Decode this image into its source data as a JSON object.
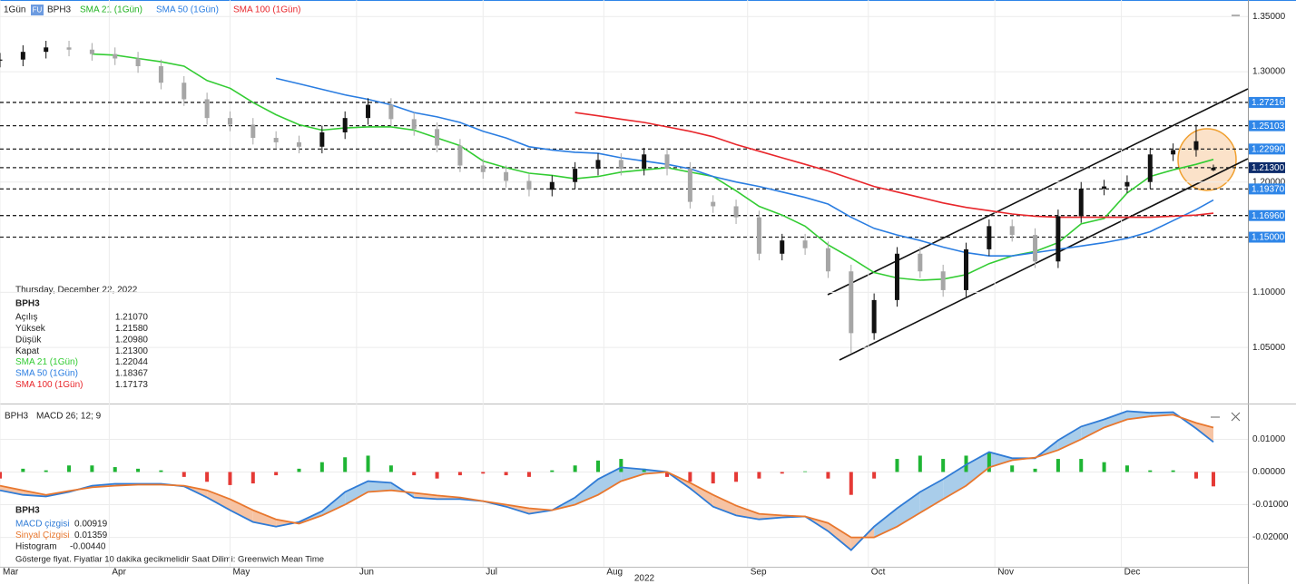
{
  "chart_data": [
    {
      "type": "candlestick",
      "interval": "1Gün",
      "badge": "FU",
      "symbol": "BPH3",
      "x": [
        0,
        4,
        8,
        12,
        16,
        20,
        24,
        28,
        32,
        36,
        40,
        44,
        48,
        52,
        56,
        60,
        64,
        68,
        72,
        76,
        80,
        84,
        88,
        92,
        96,
        100,
        104,
        108,
        112,
        116,
        120,
        124,
        128,
        132,
        136,
        140,
        144,
        148,
        152,
        156,
        160,
        164,
        168,
        172,
        176,
        180,
        184,
        188,
        192,
        196,
        200,
        204,
        208,
        211
      ],
      "open": [
        1.31,
        1.311,
        1.318,
        1.322,
        1.32,
        1.316,
        1.312,
        1.305,
        1.29,
        1.275,
        1.258,
        1.252,
        1.24,
        1.236,
        1.232,
        1.245,
        1.258,
        1.27,
        1.257,
        1.248,
        1.233,
        1.215,
        1.209,
        1.201,
        1.193,
        1.2,
        1.212,
        1.22,
        1.212,
        1.225,
        1.212,
        1.182,
        1.178,
        1.168,
        1.135,
        1.147,
        1.14,
        1.119,
        1.063,
        1.093,
        1.135,
        1.119,
        1.102,
        1.139,
        1.16,
        1.152,
        1.128,
        1.169,
        1.194,
        1.196,
        1.2,
        1.225,
        1.229,
        1.2107
      ],
      "high": [
        1.317,
        1.324,
        1.328,
        1.328,
        1.326,
        1.322,
        1.318,
        1.311,
        1.296,
        1.281,
        1.264,
        1.258,
        1.246,
        1.242,
        1.251,
        1.264,
        1.276,
        1.276,
        1.263,
        1.254,
        1.239,
        1.221,
        1.215,
        1.207,
        1.206,
        1.218,
        1.226,
        1.226,
        1.231,
        1.231,
        1.218,
        1.188,
        1.184,
        1.174,
        1.153,
        1.153,
        1.146,
        1.125,
        1.099,
        1.141,
        1.141,
        1.125,
        1.145,
        1.166,
        1.166,
        1.158,
        1.175,
        1.2,
        1.202,
        1.206,
        1.231,
        1.235,
        1.252,
        1.2158
      ],
      "low": [
        1.304,
        1.305,
        1.312,
        1.314,
        1.31,
        1.306,
        1.299,
        1.284,
        1.269,
        1.252,
        1.246,
        1.234,
        1.23,
        1.226,
        1.226,
        1.239,
        1.252,
        1.251,
        1.242,
        1.227,
        1.209,
        1.203,
        1.195,
        1.187,
        1.187,
        1.194,
        1.206,
        1.206,
        1.206,
        1.206,
        1.176,
        1.172,
        1.162,
        1.129,
        1.129,
        1.134,
        1.113,
        1.045,
        1.057,
        1.087,
        1.113,
        1.096,
        1.096,
        1.133,
        1.146,
        1.122,
        1.122,
        1.163,
        1.188,
        1.19,
        1.194,
        1.219,
        1.223,
        1.2098
      ],
      "close": [
        1.311,
        1.318,
        1.322,
        1.32,
        1.316,
        1.312,
        1.305,
        1.29,
        1.275,
        1.258,
        1.252,
        1.24,
        1.236,
        1.232,
        1.245,
        1.258,
        1.27,
        1.257,
        1.248,
        1.233,
        1.215,
        1.209,
        1.201,
        1.193,
        1.2,
        1.212,
        1.22,
        1.212,
        1.225,
        1.212,
        1.182,
        1.178,
        1.168,
        1.135,
        1.147,
        1.14,
        1.119,
        1.063,
        1.093,
        1.135,
        1.119,
        1.102,
        1.139,
        1.16,
        1.152,
        1.128,
        1.169,
        1.194,
        1.196,
        1.2,
        1.225,
        1.229,
        1.237,
        1.213
      ],
      "up_color": "#111111",
      "down_color": "#a6a6a6",
      "series": [
        {
          "name": "SMA 21 (1Gün)",
          "color": "#33cc33",
          "last": "1.22044",
          "values": [
            null,
            null,
            null,
            null,
            1.316,
            1.315,
            1.312,
            1.309,
            1.305,
            1.292,
            1.285,
            1.272,
            1.261,
            1.252,
            1.247,
            1.249,
            1.25,
            1.25,
            1.247,
            1.24,
            1.233,
            1.219,
            1.213,
            1.208,
            1.206,
            1.203,
            1.205,
            1.209,
            1.211,
            1.213,
            1.209,
            1.205,
            1.192,
            1.178,
            1.17,
            1.16,
            1.143,
            1.131,
            1.118,
            1.113,
            1.111,
            1.112,
            1.116,
            1.126,
            1.133,
            1.137,
            1.145,
            1.162,
            1.167,
            1.19,
            1.205,
            1.211,
            1.216,
            1.22044
          ]
        },
        {
          "name": "SMA 50 (1Gün)",
          "color": "#2a7de1",
          "last": "1.18367",
          "values": [
            null,
            null,
            null,
            null,
            null,
            null,
            null,
            null,
            null,
            null,
            null,
            null,
            1.294,
            1.289,
            1.284,
            1.279,
            1.275,
            1.27,
            1.263,
            1.259,
            1.254,
            1.246,
            1.24,
            1.232,
            1.229,
            1.227,
            1.226,
            1.222,
            1.219,
            1.216,
            1.212,
            1.205,
            1.2,
            1.196,
            1.191,
            1.186,
            1.18,
            1.168,
            1.158,
            1.152,
            1.147,
            1.141,
            1.136,
            1.133,
            1.133,
            1.136,
            1.139,
            1.142,
            1.145,
            1.149,
            1.155,
            1.165,
            1.175,
            1.18367
          ]
        },
        {
          "name": "SMA 100 (1Gün)",
          "color": "#e8262b",
          "last": "1.17173",
          "values": [
            null,
            null,
            null,
            null,
            null,
            null,
            null,
            null,
            null,
            null,
            null,
            null,
            null,
            null,
            null,
            null,
            null,
            null,
            null,
            null,
            null,
            null,
            null,
            null,
            null,
            1.263,
            1.26,
            1.257,
            1.254,
            1.25,
            1.246,
            1.241,
            1.234,
            1.228,
            1.222,
            1.216,
            1.21,
            1.203,
            1.196,
            1.191,
            1.186,
            1.181,
            1.177,
            1.174,
            1.171,
            1.169,
            1.168,
            1.168,
            1.168,
            1.168,
            1.168,
            1.169,
            1.17,
            1.17173
          ]
        }
      ],
      "ylim": [
        1.0,
        1.365
      ],
      "yticks": [
        {
          "value": 1.35,
          "label": "1.35000"
        },
        {
          "value": 1.3,
          "label": "1.30000"
        },
        {
          "value": 1.2,
          "label": "1.20000"
        },
        {
          "value": 1.1,
          "label": "1.10000"
        },
        {
          "value": 1.05,
          "label": "1.05000"
        }
      ],
      "levels": [
        {
          "value": 1.27216,
          "label": "1.27216",
          "color": "#2f86e8"
        },
        {
          "value": 1.25103,
          "label": "1.25103",
          "color": "#2f86e8"
        },
        {
          "value": 1.2299,
          "label": "1.22990",
          "color": "#2f86e8"
        },
        {
          "value": 1.213,
          "label": "1.21300",
          "color": "#0d2c6b"
        },
        {
          "value": 1.1937,
          "label": "1.19370",
          "color": "#2f86e8"
        },
        {
          "value": 1.1696,
          "label": "1.16960",
          "color": "#2f86e8"
        },
        {
          "value": 1.15,
          "label": "1.15000",
          "color": "#2f86e8"
        }
      ],
      "xlim": [
        0,
        217
      ],
      "xticks": [
        {
          "value": 0,
          "label": "Mar"
        },
        {
          "value": 19,
          "label": "Apr"
        },
        {
          "value": 40,
          "label": "May"
        },
        {
          "value": 62,
          "label": "Jun"
        },
        {
          "value": 84,
          "label": "Jul"
        },
        {
          "value": 105,
          "label": "Aug"
        },
        {
          "value": 130,
          "label": "Sep"
        },
        {
          "value": 151,
          "label": "Oct"
        },
        {
          "value": 173,
          "label": "Nov"
        },
        {
          "value": 195,
          "label": "Dec"
        }
      ],
      "xlabel": "2022",
      "info": {
        "date": "Thursday, December 22, 2022",
        "symbol": "BPH3",
        "rows": [
          {
            "label": "Açılış",
            "value": "1.21070"
          },
          {
            "label": "Yüksek",
            "value": "1.21580"
          },
          {
            "label": "Düşük",
            "value": "1.20980"
          },
          {
            "label": "Kapat",
            "value": "1.21300"
          }
        ]
      }
    },
    {
      "type": "macd",
      "symbol": "BPH3",
      "title": "MACD 26; 12; 9",
      "x": [
        0,
        4,
        8,
        12,
        16,
        20,
        24,
        28,
        32,
        36,
        40,
        44,
        48,
        52,
        56,
        60,
        64,
        68,
        72,
        76,
        80,
        84,
        88,
        92,
        96,
        100,
        104,
        108,
        112,
        116,
        120,
        124,
        128,
        132,
        136,
        140,
        144,
        148,
        152,
        156,
        160,
        164,
        168,
        172,
        176,
        180,
        184,
        188,
        192,
        196,
        200,
        204,
        208,
        211
      ],
      "series": [
        {
          "name": "MACD çizgisi",
          "color": "#2f7bd6",
          "last": "0.00919",
          "values": [
            -0.0056,
            -0.007,
            -0.0075,
            -0.0061,
            -0.0042,
            -0.0036,
            -0.0036,
            -0.0036,
            -0.0044,
            -0.0078,
            -0.0117,
            -0.0153,
            -0.0167,
            -0.0153,
            -0.012,
            -0.0061,
            -0.0028,
            -0.0033,
            -0.0078,
            -0.0083,
            -0.0083,
            -0.0089,
            -0.0106,
            -0.0128,
            -0.0117,
            -0.0078,
            -0.0022,
            0.0014,
            0.0008,
            0.0,
            -0.005,
            -0.0106,
            -0.0133,
            -0.0145,
            -0.0139,
            -0.0136,
            -0.0181,
            -0.0239,
            -0.0167,
            -0.0111,
            -0.0061,
            -0.0022,
            0.0022,
            0.0061,
            0.0042,
            0.0042,
            0.0097,
            0.0139,
            0.0161,
            0.0186,
            0.0181,
            0.0183,
            0.0133,
            0.00919
          ]
        },
        {
          "name": "Sinyal Çizgisi",
          "color": "#e8772e",
          "last": "0.01359",
          "values": [
            -0.0042,
            -0.0056,
            -0.007,
            -0.0058,
            -0.0047,
            -0.0042,
            -0.0039,
            -0.0039,
            -0.0042,
            -0.0056,
            -0.0083,
            -0.0117,
            -0.0145,
            -0.0158,
            -0.0133,
            -0.01,
            -0.0061,
            -0.0056,
            -0.0064,
            -0.0072,
            -0.0078,
            -0.0089,
            -0.01,
            -0.0111,
            -0.0117,
            -0.01,
            -0.007,
            -0.0028,
            -0.0006,
            0.0,
            -0.0033,
            -0.007,
            -0.0103,
            -0.0128,
            -0.0133,
            -0.0136,
            -0.0156,
            -0.02,
            -0.02,
            -0.0167,
            -0.0125,
            -0.0083,
            -0.0042,
            0.0014,
            0.0036,
            0.0044,
            0.0067,
            0.01,
            0.0136,
            0.0161,
            0.017,
            0.0175,
            0.015,
            0.01359
          ]
        }
      ],
      "histogram": {
        "name": "Histogram",
        "last": "-0.00440",
        "up_color": "#1fb534",
        "down_color": "#e53935",
        "values": [
          -0.002,
          0.001,
          0.0005,
          0.002,
          0.002,
          0.0015,
          0.001,
          0.0005,
          -0.0015,
          -0.003,
          -0.004,
          -0.0035,
          -0.001,
          0.001,
          0.003,
          0.0045,
          0.005,
          0.002,
          -0.001,
          -0.002,
          -0.001,
          -0.0005,
          -0.001,
          -0.0015,
          0.0005,
          0.002,
          0.0035,
          0.004,
          0.001,
          -0.0015,
          -0.003,
          -0.0035,
          -0.003,
          -0.002,
          -0.0005,
          0.0002,
          -0.002,
          -0.007,
          -0.002,
          0.004,
          0.005,
          0.004,
          0.005,
          0.006,
          0.002,
          0.001,
          0.004,
          0.004,
          0.003,
          0.002,
          0.0005,
          0.0005,
          -0.002,
          -0.0044
        ]
      },
      "above_fill": "#a9cdea",
      "below_fill": "#f6c3a3",
      "ylim": [
        -0.029,
        0.019
      ],
      "yticks": [
        {
          "value": 0.01,
          "label": "0.01000"
        },
        {
          "value": 0,
          "label": "0.00000"
        },
        {
          "value": -0.01,
          "label": "-0.01000"
        },
        {
          "value": -0.02,
          "label": "-0.02000"
        }
      ]
    }
  ],
  "footer": "Gösterge fiyat. Fiyatlar 10 dakika gecikmelidir   Saat Dilimi: Greenwich Mean Time"
}
